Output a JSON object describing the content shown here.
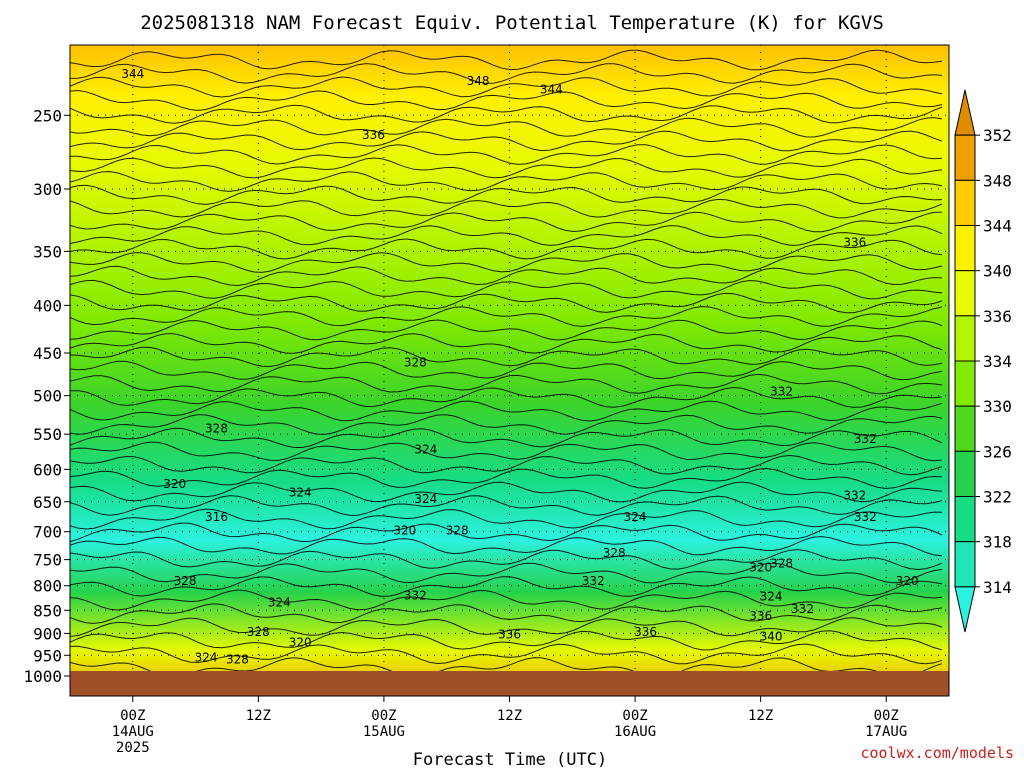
{
  "chart_data": {
    "type": "heatmap",
    "title": "2025081318 NAM Forecast Equiv. Potential Temperature (K) for KGVS",
    "xlabel": "Forecast Time (UTC)",
    "ylabel": "",
    "y_scale": "log-pressure",
    "ylim": [
      1000,
      200
    ],
    "y_ticks": [
      250,
      300,
      350,
      400,
      450,
      500,
      550,
      600,
      650,
      700,
      750,
      800,
      850,
      900,
      950,
      1000
    ],
    "x_ticks": [
      {
        "hour": 6,
        "label": "00Z",
        "sub1": "14AUG",
        "sub2": "2025"
      },
      {
        "hour": 18,
        "label": "12Z",
        "sub1": "",
        "sub2": ""
      },
      {
        "hour": 30,
        "label": "00Z",
        "sub1": "15AUG",
        "sub2": ""
      },
      {
        "hour": 42,
        "label": "12Z",
        "sub1": "",
        "sub2": ""
      },
      {
        "hour": 54,
        "label": "00Z",
        "sub1": "16AUG",
        "sub2": ""
      },
      {
        "hour": 66,
        "label": "12Z",
        "sub1": "",
        "sub2": ""
      },
      {
        "hour": 78,
        "label": "00Z",
        "sub1": "17AUG",
        "sub2": ""
      }
    ],
    "xlim": [
      0,
      84
    ],
    "colorbar": {
      "levels": [
        314,
        318,
        322,
        326,
        330,
        334,
        336,
        340,
        344,
        348,
        352
      ],
      "colors": [
        "#2cf2e0",
        "#1ee6b4",
        "#16dc86",
        "#26d24c",
        "#50d81e",
        "#82ea00",
        "#b4f400",
        "#e6fa00",
        "#fff000",
        "#ffcc00",
        "#f0a000",
        "#e08c00"
      ]
    },
    "contour_labels": [
      {
        "text": "344",
        "t": 6,
        "p": 228
      },
      {
        "text": "348",
        "t": 39,
        "p": 232
      },
      {
        "text": "344",
        "t": 46,
        "p": 237
      },
      {
        "text": "336",
        "t": 29,
        "p": 265
      },
      {
        "text": "336",
        "t": 75,
        "p": 346
      },
      {
        "text": "328",
        "t": 33,
        "p": 465
      },
      {
        "text": "332",
        "t": 68,
        "p": 500
      },
      {
        "text": "328",
        "t": 14,
        "p": 548
      },
      {
        "text": "332",
        "t": 76,
        "p": 562
      },
      {
        "text": "324",
        "t": 34,
        "p": 577
      },
      {
        "text": "320",
        "t": 10,
        "p": 628
      },
      {
        "text": "324",
        "t": 22,
        "p": 642
      },
      {
        "text": "324",
        "t": 34,
        "p": 652
      },
      {
        "text": "332",
        "t": 75,
        "p": 646
      },
      {
        "text": "316",
        "t": 14,
        "p": 682
      },
      {
        "text": "324",
        "t": 54,
        "p": 682
      },
      {
        "text": "332",
        "t": 76,
        "p": 682
      },
      {
        "text": "320",
        "t": 32,
        "p": 705
      },
      {
        "text": "328",
        "t": 37,
        "p": 705
      },
      {
        "text": "328",
        "t": 52,
        "p": 745
      },
      {
        "text": "320",
        "t": 66,
        "p": 772
      },
      {
        "text": "328",
        "t": 68,
        "p": 765
      },
      {
        "text": "328",
        "t": 11,
        "p": 799
      },
      {
        "text": "332",
        "t": 50,
        "p": 799
      },
      {
        "text": "320",
        "t": 80,
        "p": 799
      },
      {
        "text": "324",
        "t": 20,
        "p": 842
      },
      {
        "text": "332",
        "t": 33,
        "p": 828
      },
      {
        "text": "324",
        "t": 67,
        "p": 830
      },
      {
        "text": "332",
        "t": 70,
        "p": 856
      },
      {
        "text": "336",
        "t": 66,
        "p": 871
      },
      {
        "text": "328",
        "t": 18,
        "p": 906
      },
      {
        "text": "336",
        "t": 42,
        "p": 912
      },
      {
        "text": "336",
        "t": 55,
        "p": 906
      },
      {
        "text": "320",
        "t": 22,
        "p": 930
      },
      {
        "text": "340",
        "t": 67,
        "p": 916
      },
      {
        "text": "324",
        "t": 13,
        "p": 965
      },
      {
        "text": "328",
        "t": 16,
        "p": 970
      }
    ]
  },
  "credit": "coolwx.com/models"
}
